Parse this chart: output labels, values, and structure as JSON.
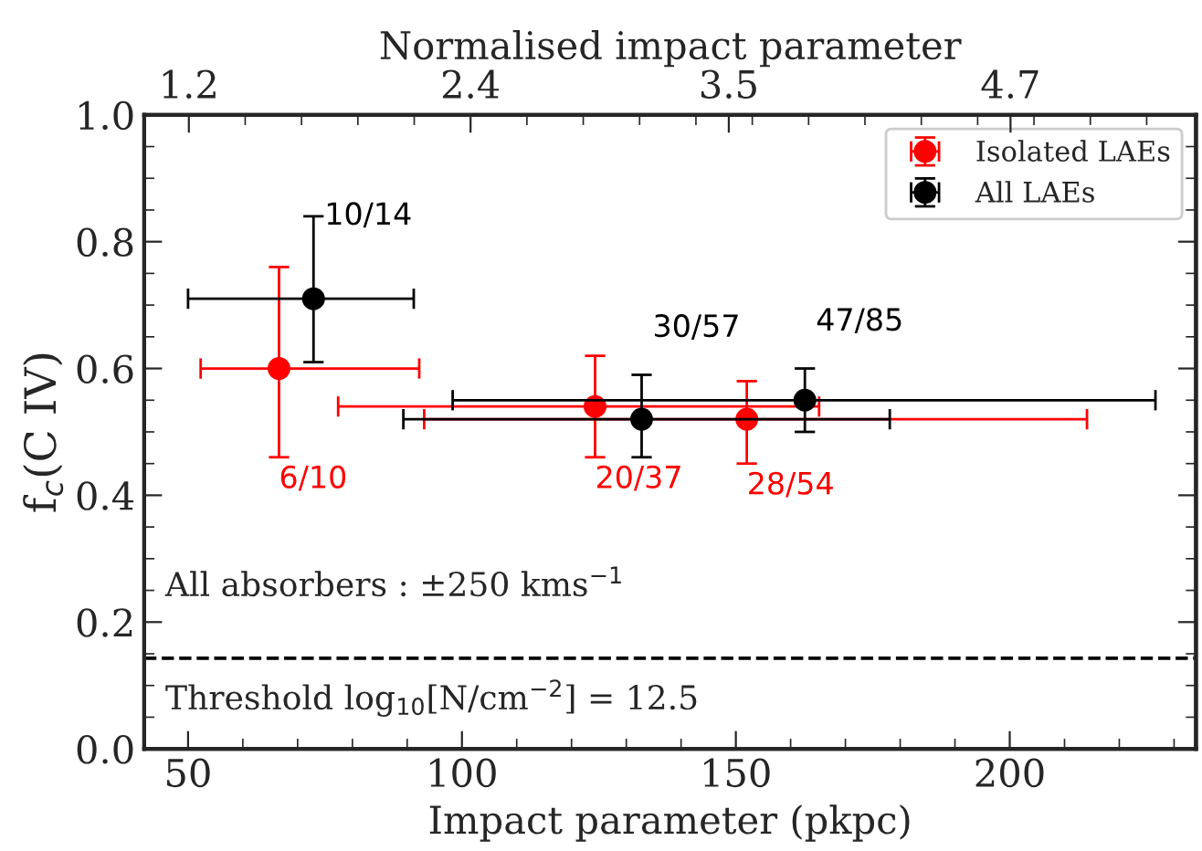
{
  "chart_data": {
    "type": "scatter",
    "xlabel": "Impact parameter (pkpc)",
    "ylabel": "f$_{c}$(C IV)",
    "x2label": "Normalised impact parameter",
    "xlim": [
      42,
      234
    ],
    "xticks": [
      50,
      100,
      150,
      200
    ],
    "x2lim": [
      1.01,
      5.49
    ],
    "x2ticks": [
      1.2,
      2.4,
      3.5,
      4.7
    ],
    "ylim": [
      0,
      1
    ],
    "yticks": [
      {
        "value": 0,
        "label": "0.0"
      },
      {
        "value": 0.2,
        "label": "0.2"
      },
      {
        "value": 0.4,
        "label": "0.4"
      },
      {
        "value": 0.6,
        "label": "0.6"
      },
      {
        "value": 0.8,
        "label": "0.8"
      },
      {
        "value": 1.0,
        "label": "1.0"
      }
    ],
    "series": [
      {
        "name": "Isolated LAEs",
        "color": "#ff0000",
        "x": [
          66.6,
          124.3,
          152.0
        ],
        "values": [
          0.6,
          0.54,
          0.52
        ],
        "errors": [
          [
            0.46,
            0.76
          ],
          [
            0.46,
            0.62
          ],
          [
            0.45,
            0.58
          ]
        ],
        "xerrors": [
          [
            52.3,
            92.2
          ],
          [
            77.4,
            165.2
          ],
          [
            93.1,
            214.1
          ]
        ],
        "value_labels": [
          "6/10",
          "20/37",
          "28/54"
        ]
      },
      {
        "name": "All LAEs",
        "color": "#000000",
        "x": [
          72.9,
          132.8,
          162.6
        ],
        "values": [
          0.71,
          0.52,
          0.55
        ],
        "errors": [
          [
            0.61,
            0.84
          ],
          [
            0.46,
            0.59
          ],
          [
            0.5,
            0.6
          ]
        ],
        "xerrors": [
          [
            50.0,
            91.2
          ],
          [
            89.3,
            178.1
          ],
          [
            98.3,
            226.6
          ]
        ],
        "value_labels": [
          "10/14",
          "30/57",
          "47/85"
        ]
      }
    ],
    "ref_lines": [
      {
        "axis": "y",
        "value": 0.143,
        "color": "#000000",
        "line_style": "dashed"
      }
    ],
    "annotations": [
      "All absorbers : ±250 kms$^{−1}$",
      "Threshold log$_{10}$[N/cm$^{−2}$] = 12.5"
    ],
    "legend": "top right",
    "grid": false,
    "marker": "circle"
  }
}
